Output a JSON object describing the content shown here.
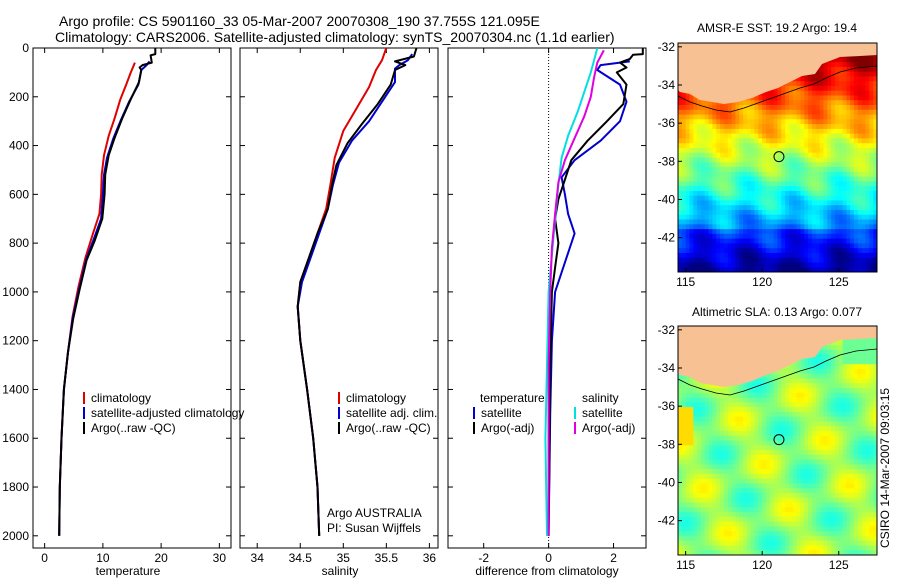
{
  "header": {
    "line1": "Argo profile: CS 5901160_33 05-Mar-2007 20070308_190 37.755S 121.095E",
    "line2": "Climatology: CARS2006. Satellite-adjusted climatology: synTS_20070304.nc (1.1d earlier)"
  },
  "stamp": "CSIRO 14-Mar-2007 09:03:15",
  "colors": {
    "climatology": "#e00000",
    "satellite": "#0000d0",
    "argo": "#000000",
    "cyan": "#00e0e0",
    "magenta": "#e000e0",
    "land": "#f7c194"
  },
  "chart_data": [
    {
      "type": "line",
      "id": "temperature",
      "xlabel": "temperature",
      "ylabel": "",
      "xlim": [
        -2,
        32
      ],
      "ylim": [
        0,
        2050
      ],
      "xticks": [
        0,
        10,
        20,
        30
      ],
      "yticks": [
        0,
        200,
        400,
        600,
        800,
        1000,
        1200,
        1400,
        1600,
        1800,
        2000
      ],
      "legend": {
        "position": "lower-right",
        "entries": [
          "climatology",
          "satellite-adjusted climatology",
          "Argo(..raw -QC)"
        ]
      },
      "series": [
        {
          "name": "climatology",
          "color": "#e00000",
          "points": [
            [
              15.5,
              60
            ],
            [
              14.8,
              100
            ],
            [
              14,
              150
            ],
            [
              13,
              210
            ],
            [
              12,
              290
            ],
            [
              11,
              360
            ],
            [
              10.2,
              440
            ],
            [
              9.8,
              520
            ],
            [
              9.7,
              600
            ],
            [
              9.4,
              680
            ],
            [
              8.3,
              760
            ],
            [
              7,
              860
            ],
            [
              5.8,
              980
            ],
            [
              4.8,
              1100
            ],
            [
              4,
              1250
            ],
            [
              3.3,
              1400
            ],
            [
              2.9,
              1600
            ],
            [
              2.6,
              1800
            ],
            [
              2.5,
              2000
            ]
          ]
        },
        {
          "name": "satellite-adjusted climatology",
          "color": "#0000d0",
          "points": [
            [
              18,
              55
            ],
            [
              17.5,
              70
            ],
            [
              16.6,
              90
            ],
            [
              16.1,
              150
            ],
            [
              14.5,
              220
            ],
            [
              13,
              300
            ],
            [
              11.8,
              370
            ],
            [
              10.7,
              450
            ],
            [
              10.2,
              520
            ],
            [
              10,
              600
            ],
            [
              9.7,
              700
            ],
            [
              8.5,
              780
            ],
            [
              7.1,
              870
            ],
            [
              5.9,
              990
            ],
            [
              4.8,
              1110
            ],
            [
              4,
              1250
            ],
            [
              3.3,
              1400
            ],
            [
              2.9,
              1600
            ],
            [
              2.6,
              1800
            ],
            [
              2.5,
              2000
            ]
          ]
        },
        {
          "name": "Argo(..raw -QC)",
          "color": "#000000",
          "points": [
            [
              19,
              0
            ],
            [
              19,
              25
            ],
            [
              18.2,
              30
            ],
            [
              18.4,
              60
            ],
            [
              16.8,
              70
            ],
            [
              16.3,
              80
            ],
            [
              16.6,
              90
            ],
            [
              16.2,
              140
            ],
            [
              14.8,
              210
            ],
            [
              13.3,
              290
            ],
            [
              12,
              370
            ],
            [
              11,
              440
            ],
            [
              10.4,
              520
            ],
            [
              10.3,
              600
            ],
            [
              9.9,
              700
            ],
            [
              8.6,
              790
            ],
            [
              7.2,
              870
            ],
            [
              6,
              990
            ],
            [
              4.9,
              1110
            ],
            [
              4,
              1250
            ],
            [
              3.3,
              1400
            ],
            [
              2.9,
              1600
            ],
            [
              2.6,
              1800
            ],
            [
              2.5,
              2000
            ]
          ]
        }
      ]
    },
    {
      "type": "line",
      "id": "salinity",
      "xlabel": "salinity",
      "ylabel": "",
      "xlim": [
        33.8,
        36.1
      ],
      "ylim": [
        0,
        2050
      ],
      "xticks": [
        34,
        34.5,
        35,
        35.5,
        36
      ],
      "xticklabels": [
        "34",
        "34.5",
        "35",
        "35.5",
        "36"
      ],
      "legend": {
        "position": "lower-right",
        "entries": [
          "climatology",
          "satellite adj. clim.",
          "Argo(..raw -QC)"
        ]
      },
      "annotation": [
        "Argo AUSTRALIA",
        "PI: Susan Wijffels"
      ],
      "series": [
        {
          "name": "climatology",
          "color": "#e00000",
          "points": [
            [
              35.5,
              0
            ],
            [
              35.45,
              50
            ],
            [
              35.38,
              90
            ],
            [
              35.3,
              160
            ],
            [
              35.15,
              250
            ],
            [
              35,
              340
            ],
            [
              34.9,
              450
            ],
            [
              34.85,
              560
            ],
            [
              34.8,
              660
            ],
            [
              34.7,
              760
            ],
            [
              34.6,
              860
            ],
            [
              34.5,
              960
            ],
            [
              34.47,
              1060
            ],
            [
              34.5,
              1200
            ],
            [
              34.58,
              1400
            ],
            [
              34.65,
              1600
            ],
            [
              34.7,
              1800
            ],
            [
              34.72,
              2000
            ]
          ]
        },
        {
          "name": "satellite adj. clim.",
          "color": "#0000d0",
          "points": [
            [
              35.8,
              25
            ],
            [
              35.75,
              50
            ],
            [
              35.65,
              70
            ],
            [
              35.6,
              85
            ],
            [
              35.6,
              140
            ],
            [
              35.45,
              220
            ],
            [
              35.3,
              300
            ],
            [
              35.1,
              380
            ],
            [
              34.95,
              470
            ],
            [
              34.88,
              560
            ],
            [
              34.82,
              660
            ],
            [
              34.72,
              760
            ],
            [
              34.62,
              860
            ],
            [
              34.52,
              960
            ],
            [
              34.47,
              1060
            ],
            [
              34.5,
              1200
            ],
            [
              34.58,
              1400
            ],
            [
              34.65,
              1600
            ],
            [
              34.7,
              1800
            ],
            [
              34.72,
              2000
            ]
          ]
        },
        {
          "name": "Argo(..raw -QC)",
          "color": "#000000",
          "points": [
            [
              35.85,
              0
            ],
            [
              35.82,
              35
            ],
            [
              35.6,
              55
            ],
            [
              35.72,
              70
            ],
            [
              35.6,
              90
            ],
            [
              35.55,
              150
            ],
            [
              35.4,
              230
            ],
            [
              35.22,
              310
            ],
            [
              35.05,
              390
            ],
            [
              34.92,
              480
            ],
            [
              34.87,
              560
            ],
            [
              34.82,
              660
            ],
            [
              34.7,
              760
            ],
            [
              34.6,
              860
            ],
            [
              34.5,
              960
            ],
            [
              34.47,
              1060
            ],
            [
              34.5,
              1200
            ],
            [
              34.58,
              1400
            ],
            [
              34.65,
              1600
            ],
            [
              34.7,
              1800
            ],
            [
              34.72,
              2000
            ]
          ]
        }
      ]
    },
    {
      "type": "line",
      "id": "difference",
      "xlabel": "difference from climatology",
      "ylabel": "",
      "xlim": [
        -3.1,
        3
      ],
      "ylim": [
        0,
        2050
      ],
      "xticks": [
        -2,
        0,
        2
      ],
      "zero_line": true,
      "legend": {
        "position": "lower-center",
        "temperature_title": "temperature",
        "salinity_title": "salinity",
        "entries": [
          "satellite",
          "Argo(-adj)",
          "satellite",
          "Argo(-adj)"
        ]
      },
      "series": [
        {
          "name": "temperature satellite",
          "color": "#0000d0",
          "points": [
            [
              2.5,
              55
            ],
            [
              1.6,
              70
            ],
            [
              1.5,
              90
            ],
            [
              2.2,
              150
            ],
            [
              2.4,
              220
            ],
            [
              2.2,
              300
            ],
            [
              1.6,
              380
            ],
            [
              0.8,
              460
            ],
            [
              0.4,
              530
            ],
            [
              0.5,
              600
            ],
            [
              0.6,
              680
            ],
            [
              0.8,
              760
            ],
            [
              0.6,
              840
            ],
            [
              0.4,
              920
            ],
            [
              0.2,
              1000
            ],
            [
              0.1,
              1200
            ],
            [
              0.05,
              1500
            ],
            [
              0,
              2000
            ]
          ]
        },
        {
          "name": "temperature Argo(-adj)",
          "color": "#000000",
          "points": [
            [
              2.9,
              0
            ],
            [
              2.9,
              25
            ],
            [
              2.6,
              28
            ],
            [
              2.5,
              45
            ],
            [
              2.2,
              60
            ],
            [
              2.4,
              80
            ],
            [
              2.1,
              100
            ],
            [
              2.4,
              150
            ],
            [
              2.3,
              230
            ],
            [
              1.8,
              300
            ],
            [
              1.2,
              380
            ],
            [
              0.7,
              460
            ],
            [
              0.5,
              540
            ],
            [
              0.3,
              620
            ],
            [
              0.2,
              700
            ],
            [
              0.3,
              800
            ],
            [
              0.2,
              900
            ],
            [
              0.1,
              1000
            ],
            [
              0.05,
              1300
            ],
            [
              0,
              2000
            ]
          ]
        },
        {
          "name": "salinity satellite",
          "color": "#00e0e0",
          "points": [
            [
              1.5,
              0
            ],
            [
              1.4,
              50
            ],
            [
              1.3,
              100
            ],
            [
              1.1,
              180
            ],
            [
              0.9,
              260
            ],
            [
              0.6,
              360
            ],
            [
              0.4,
              450
            ],
            [
              0.3,
              560
            ],
            [
              0.2,
              700
            ],
            [
              0.1,
              850
            ],
            [
              0,
              1000
            ],
            [
              -0.05,
              1300
            ],
            [
              -0.1,
              1600
            ],
            [
              -0.05,
              2000
            ]
          ]
        },
        {
          "name": "salinity Argo(-adj)",
          "color": "#e000e0",
          "points": [
            [
              1.7,
              10
            ],
            [
              1.5,
              60
            ],
            [
              1.4,
              120
            ],
            [
              1.3,
              200
            ],
            [
              1.1,
              280
            ],
            [
              0.8,
              370
            ],
            [
              0.5,
              460
            ],
            [
              0.3,
              550
            ],
            [
              0.2,
              680
            ],
            [
              0.1,
              820
            ],
            [
              0.05,
              1000
            ],
            [
              0,
              1300
            ],
            [
              0,
              2000
            ]
          ]
        }
      ]
    },
    {
      "type": "heatmap",
      "id": "sst-map",
      "title": "AMSR-E SST: 19.2 Argo: 19.4",
      "xlim": [
        114.5,
        127.5
      ],
      "ylim": [
        -43.8,
        -31.8
      ],
      "xticks": [
        115,
        120,
        125
      ],
      "yticks": [
        -32,
        -34,
        -36,
        -38,
        -40,
        -42
      ],
      "marker": {
        "lon": 121.095,
        "lat": -37.755
      }
    },
    {
      "type": "heatmap",
      "id": "sla-map",
      "title": "Altimetric SLA: 0.13 Argo: 0.077",
      "xlim": [
        114.5,
        127.5
      ],
      "ylim": [
        -43.8,
        -31.8
      ],
      "xticks": [
        115,
        120,
        125
      ],
      "yticks": [
        -32,
        -34,
        -36,
        -38,
        -40,
        -42
      ],
      "marker": {
        "lon": 121.095,
        "lat": -37.755
      }
    }
  ]
}
